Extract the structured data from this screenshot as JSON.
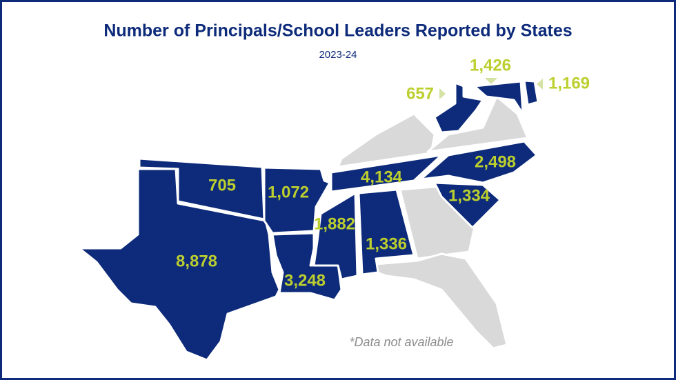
{
  "header": {
    "title": "Number of Principals/School Leaders Reported by States",
    "subtitle": "2023-24"
  },
  "states": [
    {
      "label": "8,878"
    },
    {
      "label": "705"
    },
    {
      "label": "1,072"
    },
    {
      "label": "3,248"
    },
    {
      "label": "1,882"
    },
    {
      "label": "1,336"
    },
    {
      "label": "4,134"
    },
    {
      "label": "2,498"
    },
    {
      "label": "1,334"
    },
    {
      "label": "657"
    },
    {
      "label": "1,426"
    },
    {
      "label": "1,169"
    }
  ],
  "note": "*Data not available"
}
